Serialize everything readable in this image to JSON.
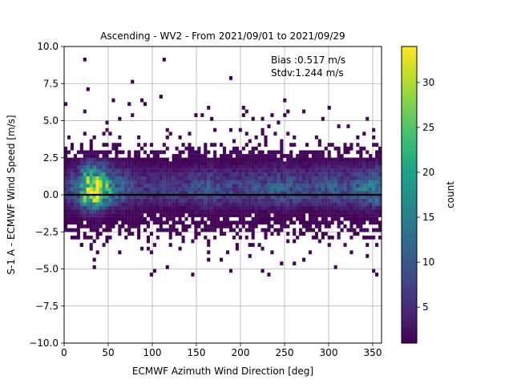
{
  "chart_data": {
    "type": "heatmap",
    "title": "Ascending - WV2 - From 2021/09/01 to 2021/09/29",
    "xlabel": "ECMWF Azimuth Wind Direction [deg]",
    "ylabel": "S-1 A - ECMWF Wind Speed [m/s]",
    "xlim": [
      0,
      360
    ],
    "ylim": [
      -10,
      10
    ],
    "x_ticks": [
      0,
      50,
      100,
      150,
      200,
      250,
      300,
      350
    ],
    "y_ticks": [
      -10.0,
      -7.5,
      -5.0,
      -2.5,
      0.0,
      2.5,
      5.0,
      7.5,
      10.0
    ],
    "x_tick_labels": [
      "0",
      "50",
      "100",
      "150",
      "200",
      "250",
      "300",
      "350"
    ],
    "y_tick_labels": [
      "−10.0",
      "−7.5",
      "−5.0",
      "−2.5",
      "0.0",
      "2.5",
      "5.0",
      "7.5",
      "10.0"
    ],
    "grid": true,
    "bin_width_x": 3.6,
    "bin_width_y": 0.25,
    "colormap": "viridis",
    "colorbar": {
      "label": "count",
      "range": [
        1,
        34
      ],
      "ticks": [
        5,
        10,
        15,
        20,
        25,
        30
      ],
      "tick_labels": [
        "5",
        "10",
        "15",
        "20",
        "25",
        "30"
      ]
    },
    "annotations": [
      "Bias :0.517 m/s",
      "Stdv:1.244 m/s"
    ],
    "reference_line": {
      "y": 0,
      "color": "#000000"
    },
    "density_profile": [
      {
        "x": 0,
        "peak": 5
      },
      {
        "x": 15,
        "peak": 12
      },
      {
        "x": 25,
        "peak": 30
      },
      {
        "x": 35,
        "peak": 34
      },
      {
        "x": 45,
        "peak": 25
      },
      {
        "x": 60,
        "peak": 12
      },
      {
        "x": 80,
        "peak": 7
      },
      {
        "x": 100,
        "peak": 6
      },
      {
        "x": 120,
        "peak": 6
      },
      {
        "x": 140,
        "peak": 7
      },
      {
        "x": 160,
        "peak": 10
      },
      {
        "x": 180,
        "peak": 8
      },
      {
        "x": 200,
        "peak": 7
      },
      {
        "x": 220,
        "peak": 8
      },
      {
        "x": 240,
        "peak": 10
      },
      {
        "x": 260,
        "peak": 9
      },
      {
        "x": 280,
        "peak": 8
      },
      {
        "x": 300,
        "peak": 10
      },
      {
        "x": 320,
        "peak": 9
      },
      {
        "x": 340,
        "peak": 12
      },
      {
        "x": 355,
        "peak": 15
      },
      {
        "x": 360,
        "peak": 10
      }
    ],
    "outliers": [
      {
        "x": 22,
        "y": 9.0
      },
      {
        "x": 113,
        "y": 9.2
      },
      {
        "x": 27,
        "y": 7.1
      },
      {
        "x": 78,
        "y": 7.5
      },
      {
        "x": 190,
        "y": 7.8
      },
      {
        "x": 55,
        "y": 6.3
      },
      {
        "x": 90,
        "y": 6.2
      },
      {
        "x": 108,
        "y": 6.6
      },
      {
        "x": 250,
        "y": 6.3
      },
      {
        "x": 255,
        "y": 5.7
      },
      {
        "x": 300,
        "y": 5.9
      },
      {
        "x": 237,
        "y": 5.4
      },
      {
        "x": 150,
        "y": 5.3
      },
      {
        "x": 203,
        "y": 5.3
      },
      {
        "x": 73,
        "y": 6.1
      },
      {
        "x": 63,
        "y": 5.0
      },
      {
        "x": 167,
        "y": 5.1
      },
      {
        "x": 214,
        "y": 5.0
      },
      {
        "x": 103,
        "y": -5.1
      },
      {
        "x": 117,
        "y": -5.0
      },
      {
        "x": 146,
        "y": -5.4
      },
      {
        "x": 233,
        "y": -5.4
      },
      {
        "x": 224,
        "y": -5.1
      },
      {
        "x": 162,
        "y": -4.4
      },
      {
        "x": 178,
        "y": -4.3
      },
      {
        "x": 247,
        "y": -4.6
      },
      {
        "x": 325,
        "y": -3.8
      },
      {
        "x": 20,
        "y": -3.5
      },
      {
        "x": 47,
        "y": -3.2
      },
      {
        "x": 130,
        "y": -3.7
      },
      {
        "x": 197,
        "y": -3.5
      },
      {
        "x": 260,
        "y": -3.2
      },
      {
        "x": 293,
        "y": -3.0
      },
      {
        "x": 340,
        "y": -2.8
      },
      {
        "x": 357,
        "y": -2.3
      },
      {
        "x": 85,
        "y": -2.9
      },
      {
        "x": 150,
        "y": -3.0
      },
      {
        "x": 212,
        "y": -3.3
      },
      {
        "x": 10,
        "y": -2.9
      },
      {
        "x": 270,
        "y": -2.6
      }
    ]
  }
}
